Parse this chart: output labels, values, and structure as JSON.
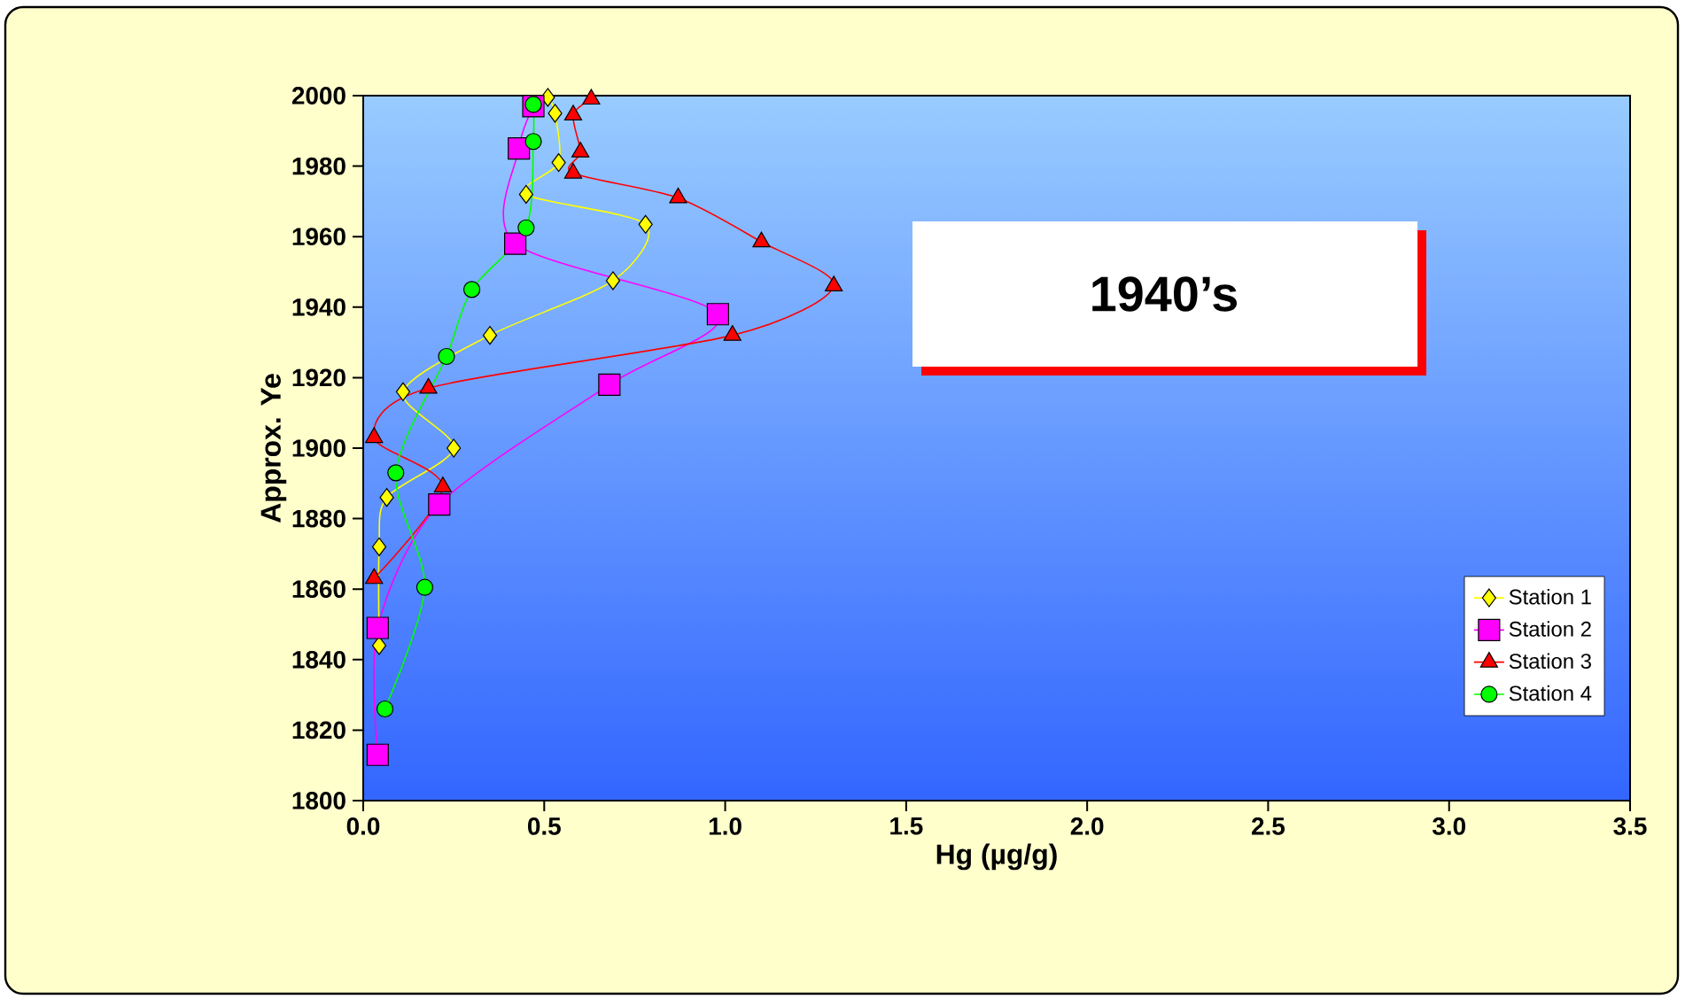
{
  "chart_data": {
    "type": "line",
    "xlabel": "Hg (µg/g)",
    "ylabel": "Approx. Ye",
    "annotations": [
      "1940’s"
    ],
    "xlim": [
      0,
      3.5
    ],
    "ylim": [
      1800,
      2000
    ],
    "xticks": [
      {
        "value": 0,
        "label": "0.0"
      },
      {
        "value": 0.5,
        "label": "0.5"
      },
      {
        "value": 1,
        "label": "1.0"
      },
      {
        "value": 1.5,
        "label": "1.5"
      },
      {
        "value": 2,
        "label": "2.0"
      },
      {
        "value": 2.5,
        "label": "2.5"
      },
      {
        "value": 3,
        "label": "3.0"
      },
      {
        "value": 3.5,
        "label": "3.5"
      }
    ],
    "yticks": [
      1800,
      1820,
      1840,
      1860,
      1880,
      1900,
      1920,
      1940,
      1960,
      1980,
      2000
    ],
    "grid": false,
    "legend": "bottom right",
    "series": [
      {
        "name": "Station 1",
        "color": "#ffff00",
        "marker": "diamond",
        "x": [
          0.51,
          0.53,
          0.54,
          0.45,
          0.78,
          0.69,
          0.35,
          0.11,
          0.25,
          0.065,
          0.044,
          0.044
        ],
        "values": [
          1999.5,
          1995,
          1981,
          1972,
          1963.5,
          1947.5,
          1932,
          1916,
          1900,
          1886,
          1872,
          1844
        ]
      },
      {
        "name": "Station 2",
        "color": "#ff00ff",
        "marker": "square",
        "x": [
          0.47,
          0.43,
          0.42,
          0.98,
          0.68,
          0.21,
          0.04,
          0.04
        ],
        "values": [
          1997,
          1985,
          1958,
          1938,
          1918,
          1884,
          1849,
          1813
        ]
      },
      {
        "name": "Station 3",
        "color": "#ff0000",
        "marker": "triangle",
        "x": [
          0.63,
          0.58,
          0.6,
          0.58,
          0.87,
          1.1,
          1.3,
          1.02,
          0.18,
          0.03,
          0.22,
          0.03
        ],
        "values": [
          1999,
          1994.5,
          1984,
          1978,
          1971,
          1958.5,
          1946,
          1932,
          1917,
          1903,
          1889,
          1863
        ]
      },
      {
        "name": "Station 4",
        "color": "#00ff00",
        "marker": "circle",
        "x": [
          0.47,
          0.47,
          0.45,
          0.3,
          0.23,
          0.09,
          0.17,
          0.06
        ],
        "values": [
          1997.5,
          1987,
          1962.5,
          1945,
          1926,
          1893,
          1860.5,
          1826
        ]
      }
    ]
  }
}
